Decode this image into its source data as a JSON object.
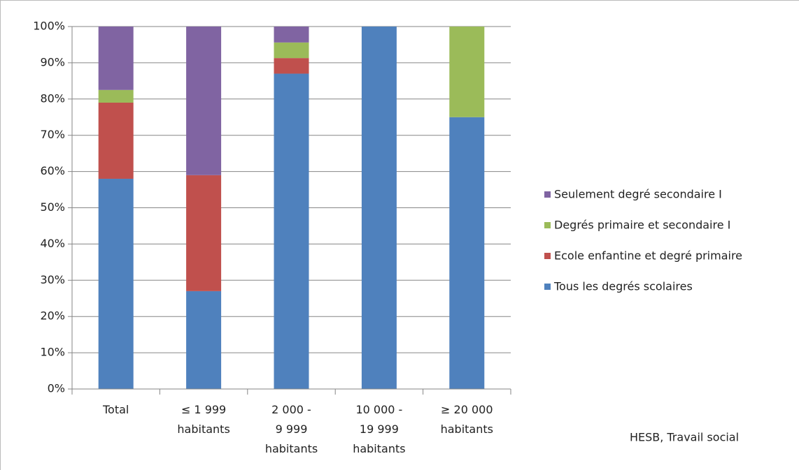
{
  "chart_data": {
    "type": "bar",
    "stacked": true,
    "categories": [
      "Total",
      "≤ 1 999\nhabitants",
      "2 000 -\n9 999\nhabitants",
      "10 000 -\n19 999\nhabitants",
      "≥ 20 000\nhabitants"
    ],
    "series": [
      {
        "name": "Tous les degrés scolaires",
        "color": "#4f81bd",
        "values": [
          58,
          27,
          87,
          100,
          75
        ]
      },
      {
        "name": "Ecole enfantine et degré primaire",
        "color": "#c0504d",
        "values": [
          21,
          32,
          4.3,
          0,
          0
        ]
      },
      {
        "name": "Degrés primaire et secondaire I",
        "color": "#9bbb59",
        "values": [
          3.5,
          0,
          4.3,
          0,
          25
        ]
      },
      {
        "name": "Seulement degré secondaire I",
        "color": "#8064a2",
        "values": [
          17.5,
          41,
          4.4,
          0,
          0
        ]
      }
    ],
    "ylim": [
      0,
      100
    ],
    "yticks": [
      {
        "value": 0,
        "label": "0%"
      },
      {
        "value": 10,
        "label": "10%"
      },
      {
        "value": 20,
        "label": "20%"
      },
      {
        "value": 30,
        "label": "30%"
      },
      {
        "value": 40,
        "label": "40%"
      },
      {
        "value": 50,
        "label": "50%"
      },
      {
        "value": 60,
        "label": "60%"
      },
      {
        "value": 70,
        "label": "70%"
      },
      {
        "value": 80,
        "label": "80%"
      },
      {
        "value": 90,
        "label": "90%"
      },
      {
        "value": 100,
        "label": "100%"
      }
    ],
    "grid": true,
    "legend": "right",
    "annotation": "HESB, Travail social"
  }
}
